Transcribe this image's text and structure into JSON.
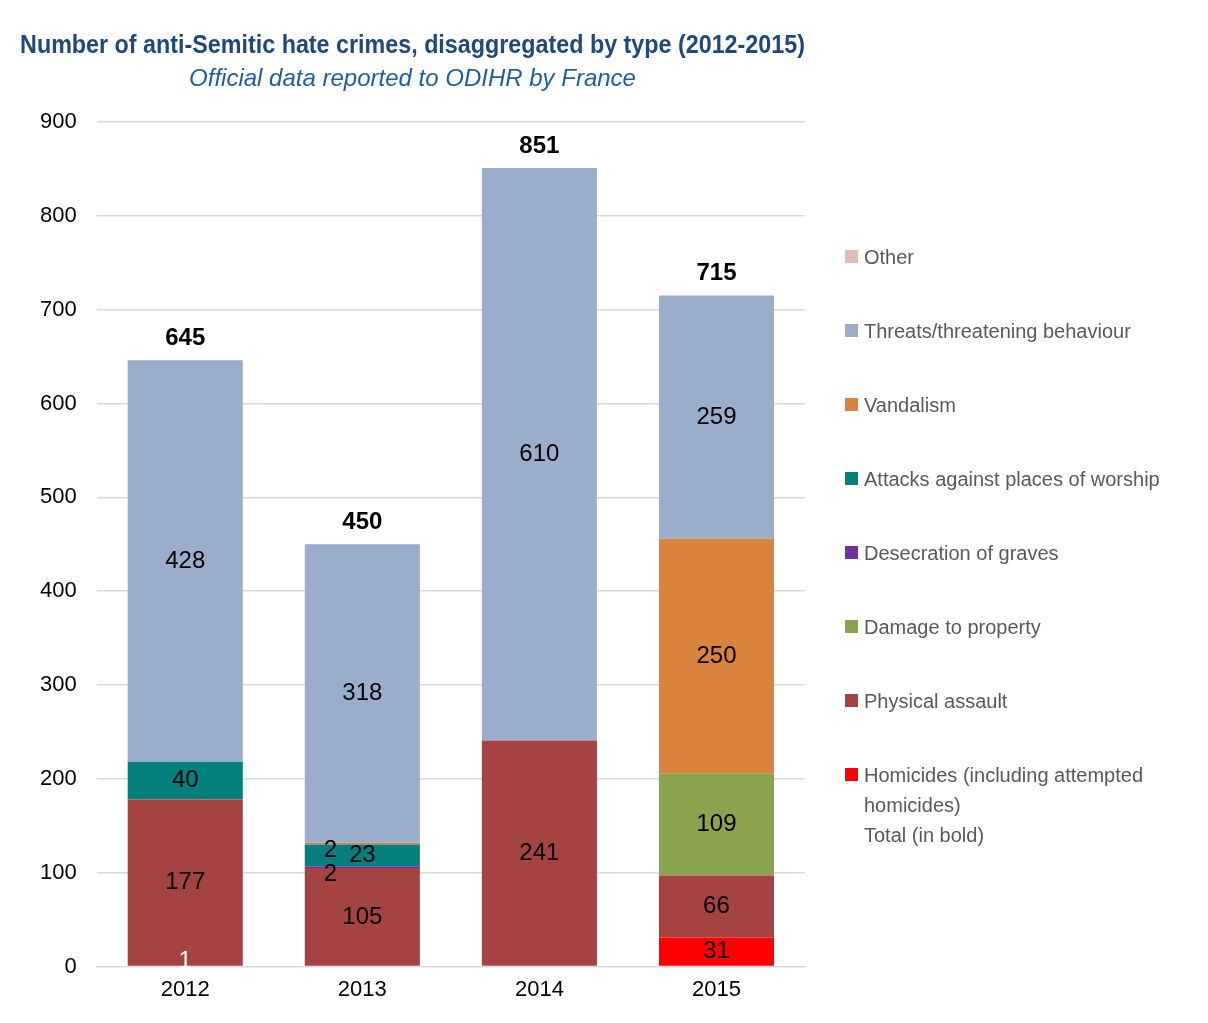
{
  "chart_data": {
    "type": "bar",
    "stacked": true,
    "title": "Number of anti-Semitic hate crimes, disaggregated by type (2012-2015)",
    "subtitle": "Official data reported to ODIHR by France",
    "categories": [
      "2012",
      "2013",
      "2014",
      "2015"
    ],
    "series": [
      {
        "name": "Homicides (including attempted homicides)",
        "color": "#ff0000",
        "values": [
          1,
          null,
          null,
          31
        ]
      },
      {
        "name": "Physical assault",
        "color": "#a54343",
        "values": [
          177,
          105,
          241,
          66
        ]
      },
      {
        "name": "Damage to property",
        "color": "#8ba34d",
        "values": [
          null,
          null,
          null,
          109
        ]
      },
      {
        "name": "Desecration of graves",
        "color": "#7030a0",
        "values": [
          null,
          2,
          null,
          null
        ]
      },
      {
        "name": "Attacks against places of worship",
        "color": "#037f7c",
        "values": [
          40,
          23,
          null,
          null
        ]
      },
      {
        "name": "Vandalism",
        "color": "#d9833e",
        "values": [
          null,
          2,
          null,
          250
        ]
      },
      {
        "name": "Threats/threatening behaviour",
        "color": "#9aaecb",
        "values": [
          428,
          318,
          610,
          259
        ]
      },
      {
        "name": "Other",
        "color": "#e6b8b7",
        "values": [
          null,
          null,
          null,
          null
        ]
      }
    ],
    "totals": [
      "645",
      "450",
      "851",
      "715"
    ],
    "annotations": [
      "Total (in bold)"
    ],
    "ylim": [
      0,
      900
    ],
    "yticks": [
      0,
      100,
      200,
      300,
      400,
      500,
      600,
      700,
      800,
      900
    ],
    "grid": "y",
    "legend": "right",
    "data_labels": true
  }
}
